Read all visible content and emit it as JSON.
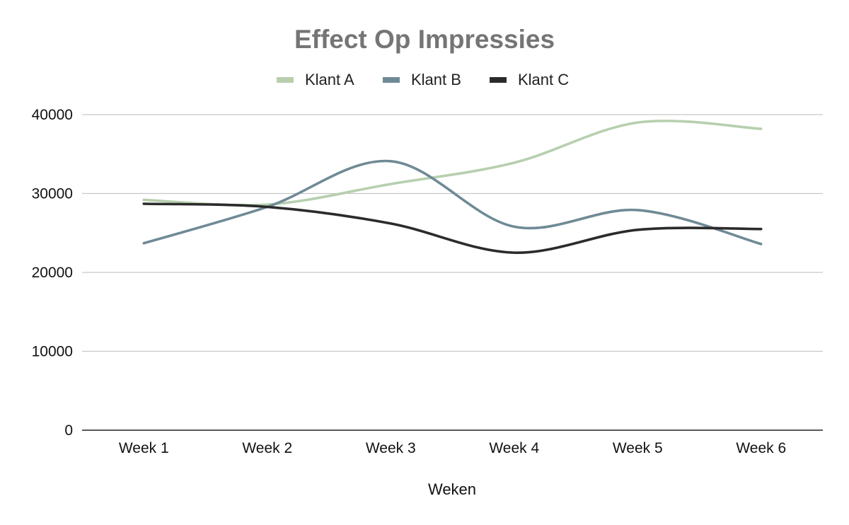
{
  "chart_data": {
    "type": "line",
    "title": "Effect Op Impressies",
    "xlabel": "Weken",
    "ylabel": "",
    "categories": [
      "Week 1",
      "Week 2",
      "Week 3",
      "Week 4",
      "Week 5",
      "Week 6"
    ],
    "ylim": [
      0,
      40000
    ],
    "yticks": [
      "0",
      "10000",
      "20000",
      "30000",
      "40000"
    ],
    "grid": true,
    "legend_position": "top",
    "smooth": true,
    "series": [
      {
        "name": "Klant A",
        "color": "#b7cfae",
        "values": [
          29200,
          28600,
          31200,
          33900,
          39000,
          38200
        ]
      },
      {
        "name": "Klant B",
        "color": "#6f8a96",
        "values": [
          23700,
          28300,
          34100,
          25800,
          27900,
          23600
        ]
      },
      {
        "name": "Klant C",
        "color": "#2b2b2b",
        "values": [
          28700,
          28300,
          26200,
          22500,
          25400,
          25500
        ]
      }
    ]
  }
}
